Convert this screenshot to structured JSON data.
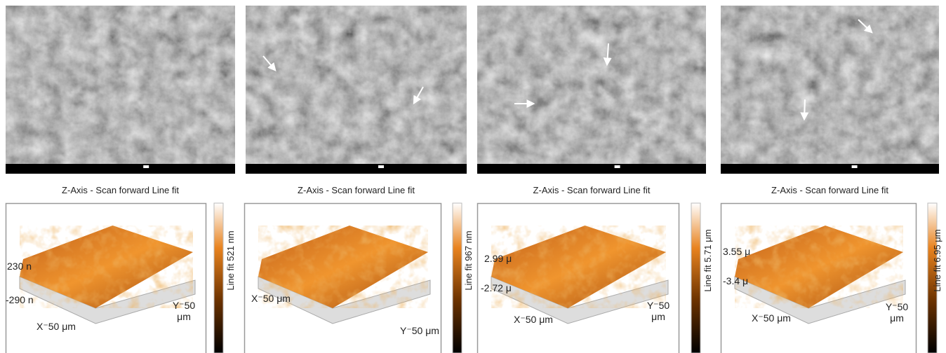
{
  "panels": [
    {
      "title": "Z-Axis - Scan forward Line fit",
      "colorbar": "Line fit 521 nm",
      "z_top": "230 n",
      "z_bottom": "-290 n",
      "x_label": "X⁻50 μm",
      "y_label": "Y⁻50 μm"
    },
    {
      "title": "Z-Axis - Scan forward Line fit",
      "colorbar": "Line fit 967 nm",
      "x_label": "X⁻50 μm",
      "y_label": "Y⁻50 μm"
    },
    {
      "title": "Z-Axis - Scan forward Line fit",
      "colorbar": "Line fit 5.71 μm",
      "z_top": "2.99 μ",
      "z_bottom": "-2.72 μ",
      "x_label": "X⁻50 μm",
      "y_label": "Y⁻50 μm"
    },
    {
      "title": "Z-Axis - Scan forward Line fit",
      "colorbar": "Line fit 6.95 μm",
      "z_top": "3.55 μ",
      "z_bottom": "-3.4 μ",
      "x_label": "X⁻50 μm",
      "y_label": "Y⁻50 μm"
    }
  ]
}
